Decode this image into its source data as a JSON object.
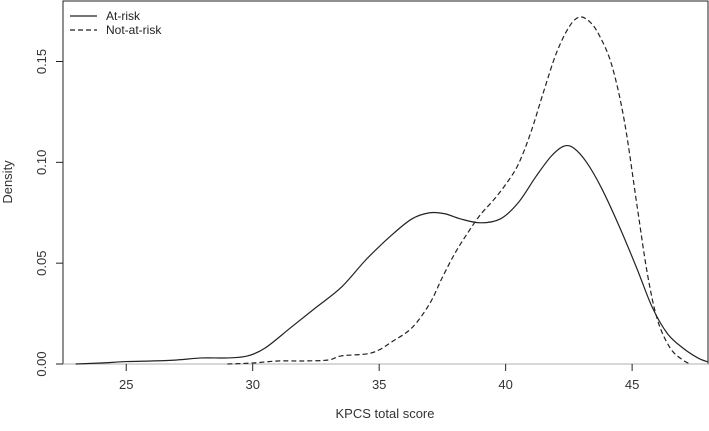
{
  "chart_data": {
    "type": "line",
    "title": "",
    "xlabel": "KPCS total score",
    "ylabel": "Density",
    "xlim": [
      22.5,
      48
    ],
    "ylim": [
      0,
      0.18
    ],
    "x_ticks": [
      25,
      30,
      35,
      40,
      45
    ],
    "y_ticks": [
      0.0,
      0.05,
      0.1,
      0.15
    ],
    "x_tick_labels": [
      "25",
      "30",
      "35",
      "40",
      "45"
    ],
    "y_tick_labels": [
      "0.00",
      "0.05",
      "0.10",
      "0.15"
    ],
    "baseline": 0,
    "grid": false,
    "legend_position": "top-left",
    "series": [
      {
        "name": "At-risk",
        "line_style": "solid",
        "color": "#222222",
        "points": [
          [
            23.0,
            0.0
          ],
          [
            24.0,
            0.0005
          ],
          [
            25.0,
            0.0012
          ],
          [
            26.0,
            0.0015
          ],
          [
            27.0,
            0.002
          ],
          [
            28.0,
            0.003
          ],
          [
            29.0,
            0.003
          ],
          [
            29.8,
            0.004
          ],
          [
            30.5,
            0.008
          ],
          [
            31.5,
            0.018
          ],
          [
            32.5,
            0.028
          ],
          [
            33.5,
            0.038
          ],
          [
            34.5,
            0.052
          ],
          [
            35.5,
            0.064
          ],
          [
            36.3,
            0.072
          ],
          [
            37.0,
            0.075
          ],
          [
            37.6,
            0.0745
          ],
          [
            38.2,
            0.072
          ],
          [
            39.0,
            0.07
          ],
          [
            39.8,
            0.072
          ],
          [
            40.5,
            0.08
          ],
          [
            41.2,
            0.093
          ],
          [
            41.8,
            0.103
          ],
          [
            42.3,
            0.108
          ],
          [
            42.7,
            0.107
          ],
          [
            43.2,
            0.1
          ],
          [
            43.8,
            0.087
          ],
          [
            44.5,
            0.068
          ],
          [
            45.2,
            0.047
          ],
          [
            45.8,
            0.028
          ],
          [
            46.4,
            0.015
          ],
          [
            47.0,
            0.008
          ],
          [
            47.6,
            0.003
          ],
          [
            48.0,
            0.001
          ]
        ]
      },
      {
        "name": "Not-at-risk",
        "line_style": "dashed",
        "color": "#222222",
        "points": [
          [
            29.0,
            0.0
          ],
          [
            30.0,
            0.0005
          ],
          [
            31.0,
            0.0015
          ],
          [
            32.0,
            0.0015
          ],
          [
            33.0,
            0.002
          ],
          [
            33.5,
            0.004
          ],
          [
            34.5,
            0.005
          ],
          [
            35.0,
            0.007
          ],
          [
            35.5,
            0.011
          ],
          [
            36.3,
            0.018
          ],
          [
            37.0,
            0.03
          ],
          [
            37.5,
            0.043
          ],
          [
            38.0,
            0.055
          ],
          [
            38.5,
            0.065
          ],
          [
            39.0,
            0.074
          ],
          [
            39.5,
            0.081
          ],
          [
            40.0,
            0.089
          ],
          [
            40.5,
            0.099
          ],
          [
            41.0,
            0.115
          ],
          [
            41.5,
            0.135
          ],
          [
            42.0,
            0.154
          ],
          [
            42.5,
            0.167
          ],
          [
            42.9,
            0.172
          ],
          [
            43.3,
            0.17
          ],
          [
            43.7,
            0.163
          ],
          [
            44.2,
            0.148
          ],
          [
            44.7,
            0.12
          ],
          [
            45.2,
            0.078
          ],
          [
            45.6,
            0.045
          ],
          [
            46.0,
            0.022
          ],
          [
            46.5,
            0.008
          ],
          [
            47.0,
            0.002
          ],
          [
            47.3,
            0.0
          ]
        ]
      }
    ]
  }
}
